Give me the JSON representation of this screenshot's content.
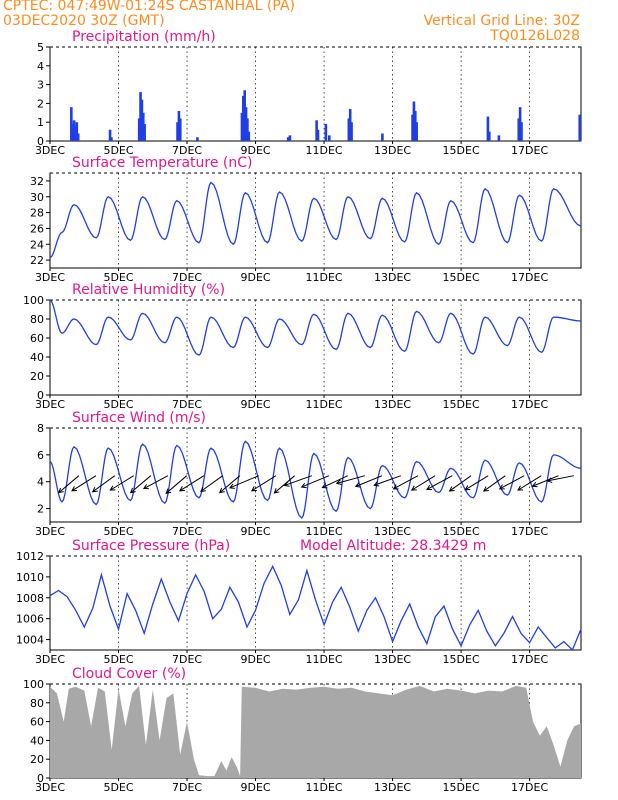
{
  "header": {
    "line1": "CPTEC:   047:49W-01:24S   CASTANHAL (PA)",
    "line2": "03DEC2020 30Z (GMT)",
    "grid_note": "Vertical Grid Line: 30Z",
    "code": "TQ0126L028"
  },
  "x_ticks": [
    "3DEC",
    "5DEC",
    "7DEC",
    "9DEC",
    "11DEC",
    "13DEC",
    "15DEC",
    "17DEC"
  ],
  "colors": {
    "header": "#ff8c1a",
    "title": "#e0188c",
    "line": "#1f3fe6",
    "bar": "#1f3fe6",
    "cloud": "#a8a8a8"
  },
  "chart_data": [
    {
      "type": "bar",
      "title": "Precipitation (mm/h)",
      "ylim": [
        0,
        5
      ],
      "yticks": [
        0,
        1,
        2,
        3,
        4,
        5
      ],
      "x_unit": "day",
      "xlim": [
        3,
        18.5
      ],
      "events": [
        {
          "day": 3.62,
          "value": 1.8
        },
        {
          "day": 3.66,
          "value": 0.9
        },
        {
          "day": 3.7,
          "value": 1.1
        },
        {
          "day": 3.74,
          "value": 0.8
        },
        {
          "day": 3.78,
          "value": 1.0
        },
        {
          "day": 3.82,
          "value": 0.4
        },
        {
          "day": 4.75,
          "value": 0.6
        },
        {
          "day": 4.79,
          "value": 0.2
        },
        {
          "day": 5.6,
          "value": 1.2
        },
        {
          "day": 5.64,
          "value": 2.6
        },
        {
          "day": 5.68,
          "value": 2.2
        },
        {
          "day": 5.72,
          "value": 1.5
        },
        {
          "day": 5.76,
          "value": 0.9
        },
        {
          "day": 6.72,
          "value": 1.0
        },
        {
          "day": 6.76,
          "value": 1.6
        },
        {
          "day": 6.8,
          "value": 1.2
        },
        {
          "day": 7.3,
          "value": 0.2
        },
        {
          "day": 8.6,
          "value": 1.5
        },
        {
          "day": 8.64,
          "value": 2.4
        },
        {
          "day": 8.68,
          "value": 2.7
        },
        {
          "day": 8.72,
          "value": 1.8
        },
        {
          "day": 8.76,
          "value": 1.2
        },
        {
          "day": 8.8,
          "value": 0.5
        },
        {
          "day": 9.95,
          "value": 0.2
        },
        {
          "day": 10.0,
          "value": 0.3
        },
        {
          "day": 10.78,
          "value": 1.1
        },
        {
          "day": 10.82,
          "value": 0.6
        },
        {
          "day": 11.05,
          "value": 0.9
        },
        {
          "day": 11.15,
          "value": 0.3
        },
        {
          "day": 11.72,
          "value": 1.2
        },
        {
          "day": 11.76,
          "value": 1.7
        },
        {
          "day": 11.8,
          "value": 1.0
        },
        {
          "day": 12.7,
          "value": 0.4
        },
        {
          "day": 13.58,
          "value": 1.4
        },
        {
          "day": 13.62,
          "value": 2.1
        },
        {
          "day": 13.66,
          "value": 1.6
        },
        {
          "day": 13.7,
          "value": 1.0
        },
        {
          "day": 15.78,
          "value": 1.3
        },
        {
          "day": 15.82,
          "value": 0.5
        },
        {
          "day": 16.1,
          "value": 0.3
        },
        {
          "day": 16.68,
          "value": 1.2
        },
        {
          "day": 16.72,
          "value": 1.8
        },
        {
          "day": 16.76,
          "value": 1.0
        },
        {
          "day": 18.46,
          "value": 1.4
        }
      ]
    },
    {
      "type": "line",
      "title": "Surface Temperature (nC)",
      "ylim": [
        21,
        33
      ],
      "yticks": [
        22,
        24,
        26,
        28,
        30,
        32
      ],
      "x_unit": "day",
      "start": {
        "day": 3.0,
        "value": 22.3
      },
      "daily_cycle": [
        {
          "day": 3.0,
          "min": 22.3,
          "max": 22.3
        },
        {
          "day": 3.7,
          "min": 25.5,
          "max": 29.0
        },
        {
          "day": 4.7,
          "min": 24.8,
          "max": 30.0
        },
        {
          "day": 5.7,
          "min": 24.5,
          "max": 30.0
        },
        {
          "day": 6.7,
          "min": 24.6,
          "max": 29.5
        },
        {
          "day": 7.7,
          "min": 24.2,
          "max": 31.8
        },
        {
          "day": 8.7,
          "min": 24.0,
          "max": 30.5
        },
        {
          "day": 9.7,
          "min": 24.2,
          "max": 30.6
        },
        {
          "day": 10.7,
          "min": 24.4,
          "max": 29.8
        },
        {
          "day": 11.7,
          "min": 24.6,
          "max": 30.0
        },
        {
          "day": 12.7,
          "min": 24.7,
          "max": 29.8
        },
        {
          "day": 13.7,
          "min": 24.3,
          "max": 30.5
        },
        {
          "day": 14.7,
          "min": 24.0,
          "max": 29.5
        },
        {
          "day": 15.7,
          "min": 24.2,
          "max": 31.0
        },
        {
          "day": 16.7,
          "min": 24.2,
          "max": 30.2
        },
        {
          "day": 17.7,
          "min": 24.4,
          "max": 31.0
        }
      ],
      "end": {
        "day": 18.5,
        "value": 26.3
      }
    },
    {
      "type": "line",
      "title": "Relative Humidity (%)",
      "ylim": [
        0,
        100
      ],
      "yticks": [
        0,
        20,
        40,
        60,
        80,
        100
      ],
      "x_unit": "day",
      "daily_cycle": [
        {
          "day": 3.0,
          "high": 100,
          "low": 100
        },
        {
          "day": 3.7,
          "high": 80,
          "low": 65
        },
        {
          "day": 4.7,
          "high": 82,
          "low": 53
        },
        {
          "day": 5.7,
          "high": 86,
          "low": 58
        },
        {
          "day": 6.7,
          "high": 82,
          "low": 55
        },
        {
          "day": 7.7,
          "high": 82,
          "low": 42
        },
        {
          "day": 8.7,
          "high": 82,
          "low": 50
        },
        {
          "day": 9.7,
          "high": 80,
          "low": 50
        },
        {
          "day": 10.7,
          "high": 85,
          "low": 53
        },
        {
          "day": 11.7,
          "high": 86,
          "low": 48
        },
        {
          "day": 12.7,
          "high": 84,
          "low": 50
        },
        {
          "day": 13.7,
          "high": 88,
          "low": 46
        },
        {
          "day": 14.7,
          "high": 86,
          "low": 55
        },
        {
          "day": 15.7,
          "high": 82,
          "low": 43
        },
        {
          "day": 16.7,
          "high": 82,
          "low": 52
        },
        {
          "day": 17.7,
          "high": 82,
          "low": 45
        }
      ],
      "end": {
        "day": 18.5,
        "value": 78
      }
    },
    {
      "type": "line",
      "title": "Surface Wind (m/s)",
      "ylim": [
        1,
        8
      ],
      "yticks": [
        2,
        4,
        6,
        8
      ],
      "x_unit": "day",
      "daily_cycle": [
        {
          "day": 3.0,
          "high": 5.5,
          "low": 4.0
        },
        {
          "day": 3.7,
          "high": 6.6,
          "low": 2.5
        },
        {
          "day": 4.7,
          "high": 6.5,
          "low": 2.3
        },
        {
          "day": 5.7,
          "high": 6.8,
          "low": 2.6
        },
        {
          "day": 6.7,
          "high": 6.7,
          "low": 2.4
        },
        {
          "day": 7.7,
          "high": 6.5,
          "low": 2.8
        },
        {
          "day": 8.7,
          "high": 7.0,
          "low": 2.5
        },
        {
          "day": 9.7,
          "high": 6.5,
          "low": 2.6
        },
        {
          "day": 10.7,
          "high": 6.1,
          "low": 1.3
        },
        {
          "day": 11.7,
          "high": 5.8,
          "low": 1.8
        },
        {
          "day": 12.7,
          "high": 5.2,
          "low": 2.0
        },
        {
          "day": 13.7,
          "high": 5.5,
          "low": 2.8
        },
        {
          "day": 14.7,
          "high": 5.0,
          "low": 3.2
        },
        {
          "day": 15.7,
          "high": 5.6,
          "low": 2.8
        },
        {
          "day": 16.7,
          "high": 5.4,
          "low": 3.0
        },
        {
          "day": 17.7,
          "high": 6.0,
          "low": 2.5
        }
      ],
      "end": {
        "day": 18.5,
        "value": 5.0
      },
      "wind_vectors": [
        {
          "day": 3.55,
          "dir_deg": 200,
          "speed": 4.2
        },
        {
          "day": 4.05,
          "dir_deg": 210,
          "speed": 4.0
        },
        {
          "day": 4.6,
          "dir_deg": 205,
          "speed": 4.1
        },
        {
          "day": 5.15,
          "dir_deg": 210,
          "speed": 3.8
        },
        {
          "day": 5.65,
          "dir_deg": 200,
          "speed": 4.2
        },
        {
          "day": 6.15,
          "dir_deg": 215,
          "speed": 3.5
        },
        {
          "day": 6.7,
          "dir_deg": 200,
          "speed": 4.4
        },
        {
          "day": 7.2,
          "dir_deg": 210,
          "speed": 4.0
        },
        {
          "day": 7.75,
          "dir_deg": 205,
          "speed": 4.0
        },
        {
          "day": 8.25,
          "dir_deg": 200,
          "speed": 4.2
        },
        {
          "day": 8.8,
          "dir_deg": 225,
          "speed": 3.8
        },
        {
          "day": 9.3,
          "dir_deg": 210,
          "speed": 4.0
        },
        {
          "day": 9.85,
          "dir_deg": 200,
          "speed": 4.3
        },
        {
          "day": 10.35,
          "dir_deg": 230,
          "speed": 3.2
        },
        {
          "day": 10.85,
          "dir_deg": 225,
          "speed": 3.5
        },
        {
          "day": 11.4,
          "dir_deg": 220,
          "speed": 3.4
        },
        {
          "day": 11.9,
          "dir_deg": 240,
          "speed": 3.0
        },
        {
          "day": 12.4,
          "dir_deg": 225,
          "speed": 3.3
        },
        {
          "day": 12.95,
          "dir_deg": 230,
          "speed": 3.1
        },
        {
          "day": 13.45,
          "dir_deg": 215,
          "speed": 3.6
        },
        {
          "day": 13.95,
          "dir_deg": 210,
          "speed": 3.8
        },
        {
          "day": 14.45,
          "dir_deg": 215,
          "speed": 3.8
        },
        {
          "day": 15.0,
          "dir_deg": 205,
          "speed": 3.9
        },
        {
          "day": 15.5,
          "dir_deg": 210,
          "speed": 3.7
        },
        {
          "day": 16.0,
          "dir_deg": 205,
          "speed": 3.9
        },
        {
          "day": 16.55,
          "dir_deg": 215,
          "speed": 3.6
        },
        {
          "day": 17.05,
          "dir_deg": 210,
          "speed": 3.8
        },
        {
          "day": 17.55,
          "dir_deg": 225,
          "speed": 3.2
        },
        {
          "day": 18.0,
          "dir_deg": 250,
          "speed": 2.5
        }
      ]
    },
    {
      "type": "line",
      "title": "Surface Pressure (hPa)",
      "subtitle": "Model Altitude: 28.3429  m",
      "ylim": [
        1003,
        1012
      ],
      "yticks": [
        1004,
        1006,
        1008,
        1010,
        1012
      ],
      "x_unit": "day",
      "points": [
        [
          3.0,
          1008.2
        ],
        [
          3.25,
          1008.7
        ],
        [
          3.5,
          1008.1
        ],
        [
          3.75,
          1006.8
        ],
        [
          4.0,
          1005.2
        ],
        [
          4.25,
          1007.0
        ],
        [
          4.5,
          1010.2
        ],
        [
          4.75,
          1007.2
        ],
        [
          5.0,
          1005.0
        ],
        [
          5.25,
          1008.4
        ],
        [
          5.5,
          1006.8
        ],
        [
          5.75,
          1004.6
        ],
        [
          6.0,
          1007.4
        ],
        [
          6.25,
          1009.8
        ],
        [
          6.5,
          1007.6
        ],
        [
          6.75,
          1005.8
        ],
        [
          7.0,
          1008.4
        ],
        [
          7.25,
          1010.2
        ],
        [
          7.5,
          1008.6
        ],
        [
          7.75,
          1006.0
        ],
        [
          8.0,
          1006.9
        ],
        [
          8.25,
          1009.0
        ],
        [
          8.5,
          1007.6
        ],
        [
          8.75,
          1005.2
        ],
        [
          9.0,
          1006.8
        ],
        [
          9.25,
          1009.4
        ],
        [
          9.5,
          1011.0
        ],
        [
          9.75,
          1009.2
        ],
        [
          10.0,
          1006.4
        ],
        [
          10.25,
          1007.8
        ],
        [
          10.5,
          1010.6
        ],
        [
          10.75,
          1007.8
        ],
        [
          11.0,
          1005.4
        ],
        [
          11.25,
          1007.6
        ],
        [
          11.5,
          1009.0
        ],
        [
          11.75,
          1007.1
        ],
        [
          12.0,
          1004.8
        ],
        [
          12.25,
          1006.8
        ],
        [
          12.5,
          1008.0
        ],
        [
          12.75,
          1006.2
        ],
        [
          13.0,
          1003.8
        ],
        [
          13.25,
          1005.8
        ],
        [
          13.5,
          1007.4
        ],
        [
          13.75,
          1005.2
        ],
        [
          14.0,
          1003.6
        ],
        [
          14.25,
          1006.2
        ],
        [
          14.5,
          1007.2
        ],
        [
          14.75,
          1005.0
        ],
        [
          15.0,
          1003.4
        ],
        [
          15.25,
          1005.4
        ],
        [
          15.5,
          1006.8
        ],
        [
          15.75,
          1004.8
        ],
        [
          16.0,
          1003.4
        ],
        [
          16.25,
          1004.6
        ],
        [
          16.5,
          1006.2
        ],
        [
          16.75,
          1004.6
        ],
        [
          17.0,
          1003.7
        ],
        [
          17.25,
          1005.2
        ],
        [
          17.5,
          1004.2
        ],
        [
          17.75,
          1003.2
        ],
        [
          18.0,
          1003.8
        ],
        [
          18.25,
          1003.0
        ],
        [
          18.5,
          1005.0
        ]
      ]
    },
    {
      "type": "area",
      "title": "Cloud Cover (%)",
      "ylim": [
        0,
        100
      ],
      "yticks": [
        0,
        20,
        40,
        60,
        80,
        100
      ],
      "x_unit": "day",
      "points": [
        [
          3.0,
          97
        ],
        [
          3.2,
          90
        ],
        [
          3.4,
          60
        ],
        [
          3.55,
          95
        ],
        [
          3.75,
          97
        ],
        [
          4.0,
          93
        ],
        [
          4.2,
          55
        ],
        [
          4.4,
          96
        ],
        [
          4.6,
          92
        ],
        [
          4.8,
          30
        ],
        [
          5.0,
          95
        ],
        [
          5.2,
          55
        ],
        [
          5.4,
          90
        ],
        [
          5.6,
          98
        ],
        [
          5.8,
          35
        ],
        [
          6.0,
          94
        ],
        [
          6.2,
          40
        ],
        [
          6.4,
          85
        ],
        [
          6.6,
          90
        ],
        [
          6.8,
          25
        ],
        [
          7.0,
          60
        ],
        [
          7.2,
          20
        ],
        [
          7.35,
          3
        ],
        [
          7.6,
          2
        ],
        [
          7.8,
          2
        ],
        [
          8.0,
          18
        ],
        [
          8.15,
          8
        ],
        [
          8.3,
          22
        ],
        [
          8.45,
          12
        ],
        [
          8.55,
          2
        ],
        [
          8.6,
          97
        ],
        [
          9.0,
          96
        ],
        [
          9.4,
          92
        ],
        [
          9.8,
          95
        ],
        [
          10.2,
          94
        ],
        [
          10.6,
          96
        ],
        [
          11.0,
          97
        ],
        [
          11.4,
          95
        ],
        [
          11.8,
          96
        ],
        [
          12.2,
          92
        ],
        [
          12.6,
          90
        ],
        [
          13.0,
          88
        ],
        [
          13.4,
          94
        ],
        [
          13.8,
          98
        ],
        [
          14.2,
          92
        ],
        [
          14.6,
          95
        ],
        [
          15.0,
          93
        ],
        [
          15.4,
          90
        ],
        [
          15.8,
          93
        ],
        [
          16.2,
          92
        ],
        [
          16.6,
          98
        ],
        [
          16.9,
          96
        ],
        [
          17.1,
          60
        ],
        [
          17.3,
          45
        ],
        [
          17.5,
          55
        ],
        [
          17.7,
          35
        ],
        [
          17.9,
          12
        ],
        [
          18.1,
          40
        ],
        [
          18.3,
          55
        ],
        [
          18.5,
          58
        ]
      ]
    }
  ]
}
